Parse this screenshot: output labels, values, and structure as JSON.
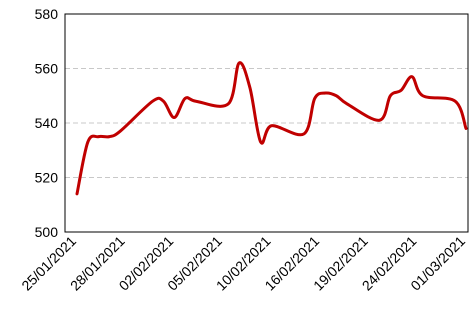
{
  "chart_data": {
    "type": "line",
    "title": "",
    "xlabel": "",
    "ylabel": "",
    "ylim": [
      500,
      580
    ],
    "yticks": [
      500,
      520,
      540,
      560,
      580
    ],
    "grid": {
      "horizontal": true,
      "style": "dashed"
    },
    "legend": "none",
    "xticks": [
      "25/01/2021",
      "28/01/2021",
      "02/02/2021",
      "05/02/2021",
      "10/02/2021",
      "16/02/2021",
      "19/02/2021",
      "24/02/2021",
      "01/03/2021"
    ],
    "series": [
      {
        "color": "#c00000",
        "points": [
          {
            "x": "2021-01-25",
            "y": 514
          },
          {
            "x": "2021-01-26",
            "y": 533
          },
          {
            "x": "2021-01-27",
            "y": 535
          },
          {
            "x": "2021-01-28",
            "y": 535
          },
          {
            "x": "2021-01-29",
            "y": 537
          },
          {
            "x": "2021-02-01",
            "y": 548
          },
          {
            "x": "2021-02-02",
            "y": 548
          },
          {
            "x": "2021-02-03",
            "y": 542
          },
          {
            "x": "2021-02-04",
            "y": 549
          },
          {
            "x": "2021-02-05",
            "y": 548
          },
          {
            "x": "2021-02-08",
            "y": 547
          },
          {
            "x": "2021-02-09",
            "y": 562
          },
          {
            "x": "2021-02-10",
            "y": 553
          },
          {
            "x": "2021-02-11",
            "y": 533
          },
          {
            "x": "2021-02-12",
            "y": 539
          },
          {
            "x": "2021-02-15",
            "y": 536
          },
          {
            "x": "2021-02-16",
            "y": 549
          },
          {
            "x": "2021-02-17",
            "y": 551
          },
          {
            "x": "2021-02-18",
            "y": 550
          },
          {
            "x": "2021-02-19",
            "y": 547
          },
          {
            "x": "2021-02-22",
            "y": 541
          },
          {
            "x": "2021-02-23",
            "y": 550
          },
          {
            "x": "2021-02-24",
            "y": 552
          },
          {
            "x": "2021-02-25",
            "y": 557
          },
          {
            "x": "2021-02-26",
            "y": 550
          },
          {
            "x": "2021-03-01",
            "y": 548
          },
          {
            "x": "2021-03-02",
            "y": 538
          }
        ]
      }
    ]
  }
}
